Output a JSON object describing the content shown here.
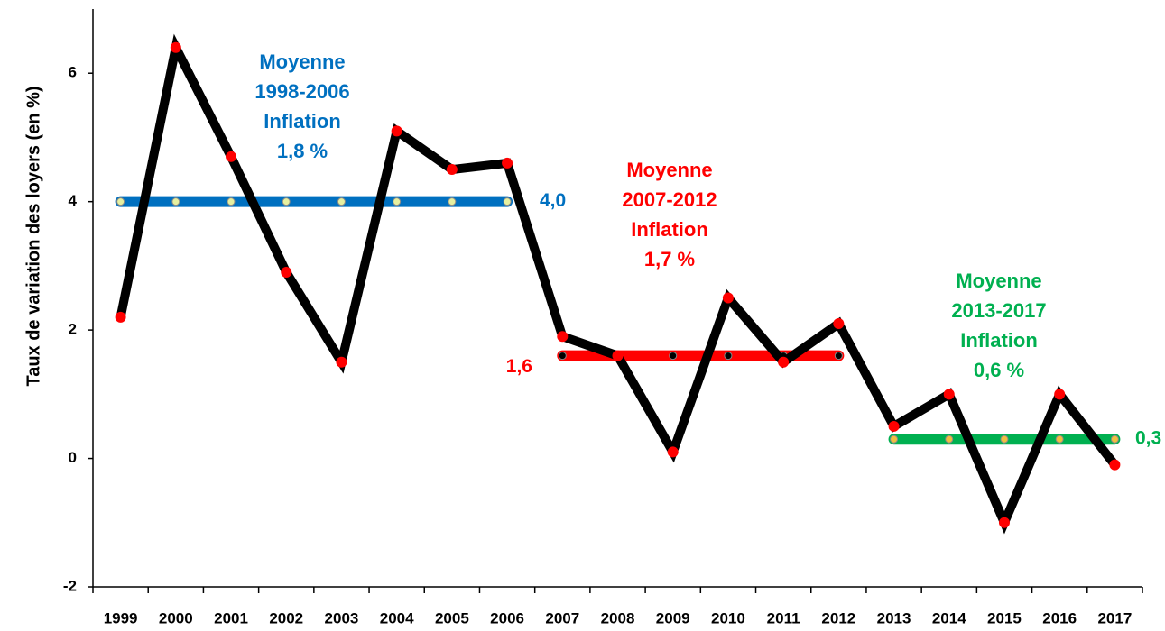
{
  "chart_data": {
    "type": "line",
    "y_label": "Taux de variation des loyers  (en %)",
    "categories": [
      "1999",
      "2000",
      "2001",
      "2002",
      "2003",
      "2004",
      "2005",
      "2006",
      "2007",
      "2008",
      "2009",
      "2010",
      "2011",
      "2012",
      "2013",
      "2014",
      "2015",
      "2016",
      "2017"
    ],
    "series": [
      {
        "color": "#000000",
        "marker_color": "#ff0000",
        "values": [
          2.2,
          6.4,
          4.7,
          2.9,
          1.5,
          5.1,
          4.5,
          4.6,
          1.9,
          1.6,
          0.1,
          2.5,
          1.5,
          2.1,
          0.5,
          1.0,
          -1.0,
          1.0,
          -0.1
        ]
      }
    ],
    "averages": [
      {
        "value": 4.0,
        "label": "4,0",
        "start": "1999",
        "end": "2006",
        "color": "#0070c0",
        "marker_color": "#e6f0a0",
        "annotation": [
          "Moyenne",
          "1998-2006",
          "Inflation",
          "1,8 %"
        ]
      },
      {
        "value": 1.6,
        "label": "1,6",
        "start": "2007",
        "end": "2012",
        "color": "#ff0000",
        "marker_color": "#000000",
        "annotation": [
          "Moyenne",
          "2007-2012",
          "Inflation",
          "1,7 %"
        ]
      },
      {
        "value": 0.3,
        "label": "0,3",
        "start": "2013",
        "end": "2017",
        "color": "#00b050",
        "marker_color": "#f0c040",
        "annotation": [
          "Moyenne",
          "2013-2017",
          "Inflation",
          "0,6 %"
        ]
      }
    ],
    "ylim": [
      -2,
      7
    ],
    "yticks": [
      -2,
      0,
      2,
      4,
      6
    ]
  }
}
